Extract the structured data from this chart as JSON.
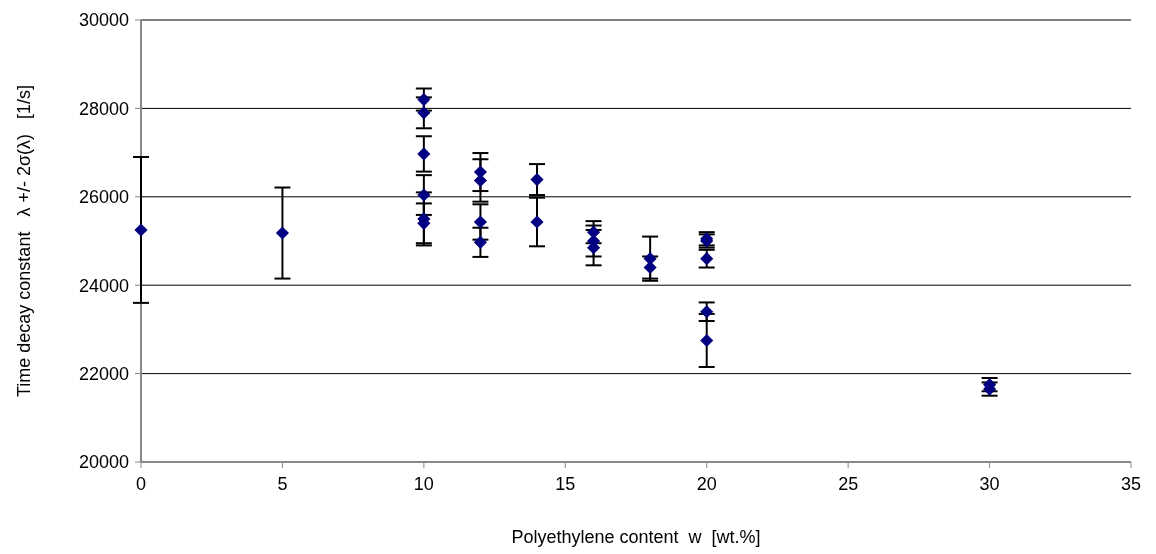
{
  "chart_data": {
    "type": "scatter",
    "xlabel": "Polyethylene content  w  [wt.%]",
    "ylabel": "Time decay constant   λ +/- 2σ(λ)   [1/s]",
    "x": [
      0,
      5,
      10,
      10,
      10,
      10,
      10,
      10,
      12,
      12,
      12,
      12,
      14,
      14,
      16,
      16,
      16,
      18,
      18,
      20,
      20,
      20,
      20,
      20,
      30,
      30
    ],
    "series": [
      {
        "color": "#000080",
        "values": [
          25250,
          25180,
          28200,
          27900,
          26970,
          26040,
          25500,
          25400,
          26560,
          26370,
          25430,
          24970,
          26390,
          25430,
          25200,
          25000,
          24850,
          24600,
          24400,
          25050,
          25000,
          24600,
          23400,
          22750,
          21750,
          21650
        ],
        "errors": [
          1650,
          1030,
          250,
          350,
          400,
          450,
          600,
          450,
          430,
          480,
          400,
          330,
          350,
          550,
          250,
          350,
          400,
          500,
          250,
          150,
          150,
          200,
          210,
          600,
          150,
          150
        ]
      }
    ],
    "xlim": [
      0,
      35
    ],
    "xticks": [
      0,
      5,
      10,
      15,
      20,
      25,
      30,
      35
    ],
    "ylim": [
      20000,
      30000
    ],
    "yticks": [
      20000,
      22000,
      24000,
      26000,
      28000,
      30000
    ],
    "grid": "y",
    "marker": "diamond"
  }
}
